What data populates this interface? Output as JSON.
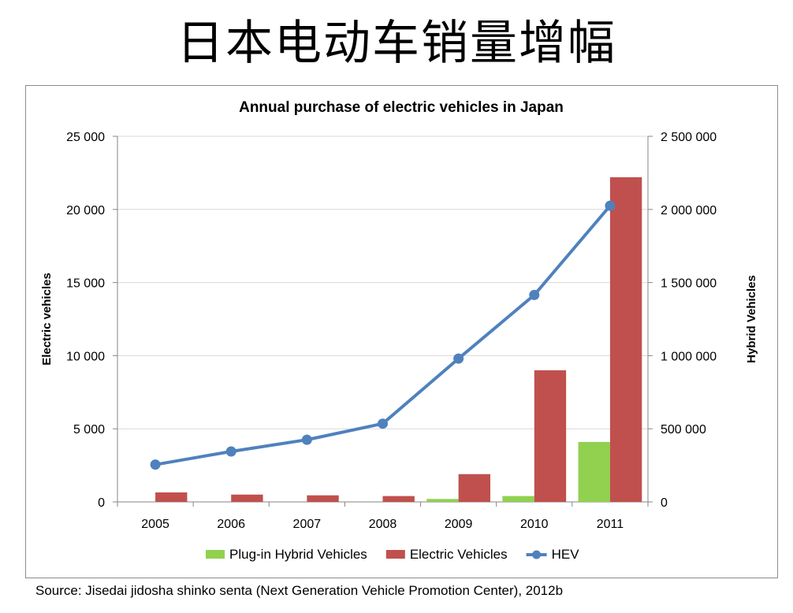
{
  "slide": {
    "title": "日本电动车销量增幅",
    "source": "Source: Jisedai jidosha shinko senta (Next Generation Vehicle Promotion Center), 2012b"
  },
  "chart_data": {
    "type": "bar",
    "title": "Annual purchase of electric vehicles in Japan",
    "categories": [
      "2005",
      "2006",
      "2007",
      "2008",
      "2009",
      "2010",
      "2011"
    ],
    "ylabel": "Electric vehicles",
    "y2label": "Hybrid Vehicles",
    "ylim": [
      0,
      25000
    ],
    "y2lim": [
      0,
      2500000
    ],
    "yticks": [
      "0",
      "5 000",
      "10 000",
      "15 000",
      "20 000",
      "25 000"
    ],
    "y2ticks": [
      "0",
      "500 000",
      "1 000 000",
      "1 500 000",
      "2 000 000",
      "2 500 000"
    ],
    "grid": true,
    "legend_position": "bottom",
    "series": [
      {
        "name": "Plug-in Hybrid Vehicles",
        "kind": "bar",
        "axis": "left",
        "color": "#92d050",
        "values": [
          0,
          0,
          0,
          0,
          200,
          400,
          4100
        ]
      },
      {
        "name": "Electric Vehicles",
        "kind": "bar",
        "axis": "left",
        "color": "#c0504d",
        "values": [
          650,
          500,
          450,
          400,
          1900,
          9000,
          22200
        ]
      },
      {
        "name": "HEV",
        "kind": "line",
        "axis": "right",
        "color": "#4f81bd",
        "values": [
          255000,
          345000,
          425000,
          535000,
          980000,
          1415000,
          2025000
        ]
      }
    ]
  }
}
